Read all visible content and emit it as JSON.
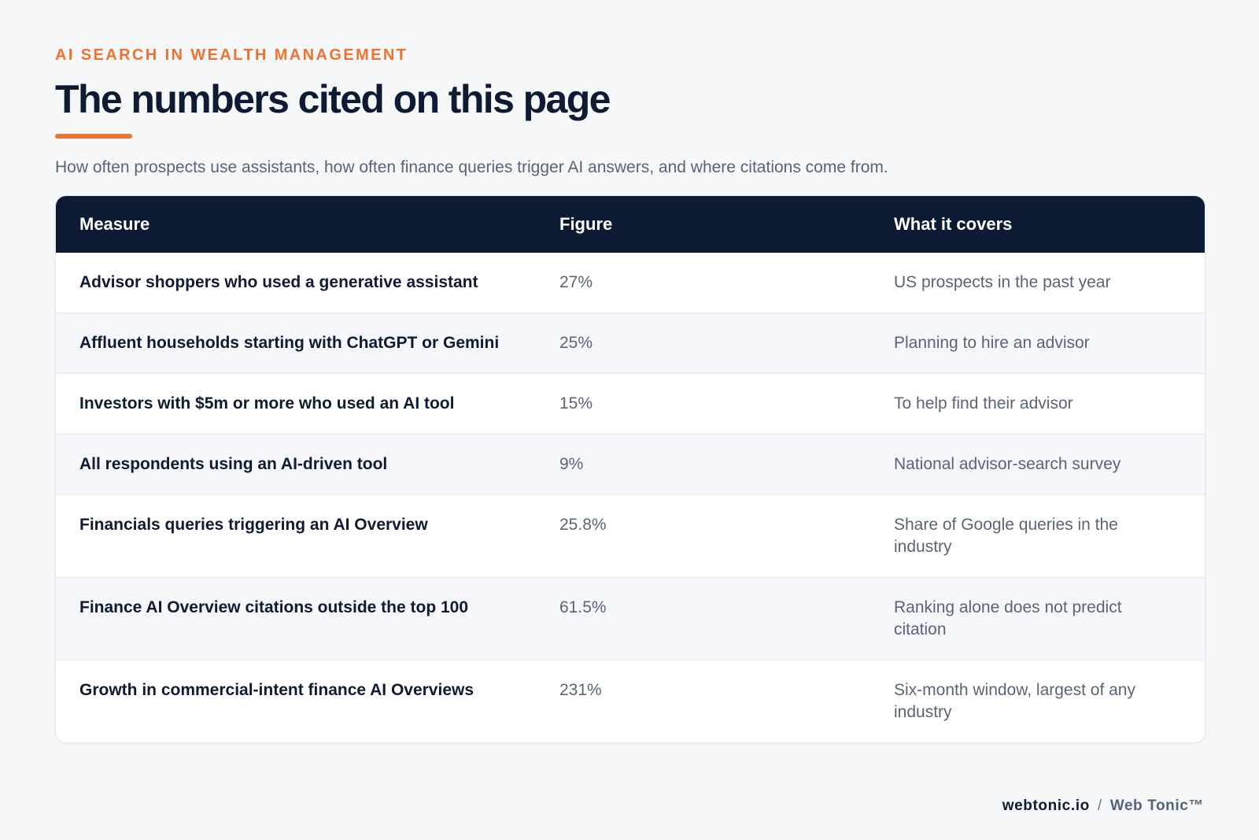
{
  "header": {
    "eyebrow": "AI SEARCH IN WEALTH MANAGEMENT",
    "title": "The numbers cited on this page",
    "subtitle": "How often prospects use assistants, how often finance queries trigger AI answers, and where citations come from."
  },
  "table": {
    "columns": [
      "Measure",
      "Figure",
      "What it covers"
    ],
    "rows": [
      {
        "measure": "Advisor shoppers who used a generative assistant",
        "figure": "27%",
        "covers": "US prospects in the past year"
      },
      {
        "measure": "Affluent households starting with ChatGPT or Gemini",
        "figure": "25%",
        "covers": "Planning to hire an advisor"
      },
      {
        "measure": "Investors with $5m or more who used an AI tool",
        "figure": "15%",
        "covers": "To help find their advisor"
      },
      {
        "measure": "All respondents using an AI-driven tool",
        "figure": "9%",
        "covers": "National advisor-search survey"
      },
      {
        "measure": "Financials queries triggering an AI Overview",
        "figure": "25.8%",
        "covers": "Share of Google queries in the industry"
      },
      {
        "measure": "Finance AI Overview citations outside the top 100",
        "figure": "61.5%",
        "covers": "Ranking alone does not predict citation"
      },
      {
        "measure": "Growth in commercial-intent finance AI Overviews",
        "figure": "231%",
        "covers": "Six-month window, largest of any industry"
      }
    ]
  },
  "footer": {
    "site": "webtonic.io",
    "separator": "/",
    "brand": "Web Tonic™"
  },
  "colors": {
    "accent": "#ee7330",
    "header_bg": "#0d1a33",
    "text_dark": "#0f1b33",
    "text_muted": "#5a6478",
    "page_bg": "#f6f7f9"
  }
}
